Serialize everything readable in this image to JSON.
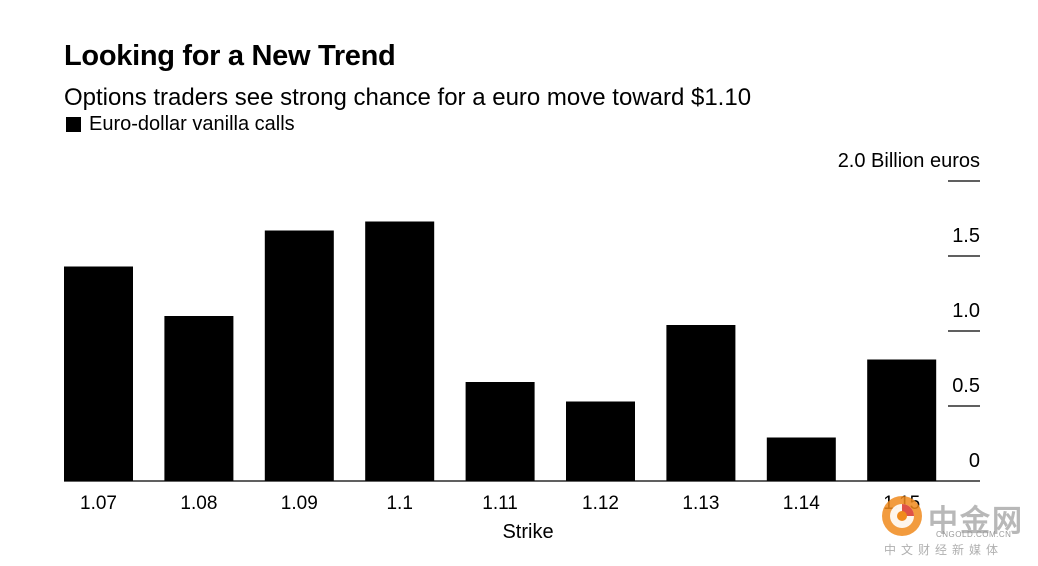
{
  "chart_data": {
    "type": "bar",
    "title": "Looking for a New Trend",
    "subtitle": "Options traders see strong chance for a euro move toward $1.10",
    "legend": [
      "Euro-dollar vanilla calls"
    ],
    "xlabel": "Strike",
    "ylabel": "Billion euros",
    "categories": [
      "1.07",
      "1.08",
      "1.09",
      "1.1",
      "1.11",
      "1.12",
      "1.13",
      "1.14",
      "1.15"
    ],
    "series": [
      {
        "name": "Euro-dollar vanilla calls",
        "values": [
          1.43,
          1.1,
          1.67,
          1.73,
          0.66,
          0.53,
          1.04,
          0.29,
          0.81
        ]
      }
    ],
    "ylim": [
      0,
      2.0
    ],
    "yticks": [
      {
        "value": 0,
        "label": "0"
      },
      {
        "value": 0.5,
        "label": "0.5"
      },
      {
        "value": 1.0,
        "label": "1.0"
      },
      {
        "value": 1.5,
        "label": "1.5"
      },
      {
        "value": 2.0,
        "label": "2.0 Billion euros"
      }
    ],
    "grid": false,
    "axis_side": "right",
    "bar_color": "#000000"
  },
  "watermark": {
    "name": "中金网",
    "domain": "CNGOLD.COM.CN",
    "tagline": "中文财经新媒体",
    "colors": {
      "orange": "#f08a1c",
      "red": "#d9352a"
    }
  }
}
